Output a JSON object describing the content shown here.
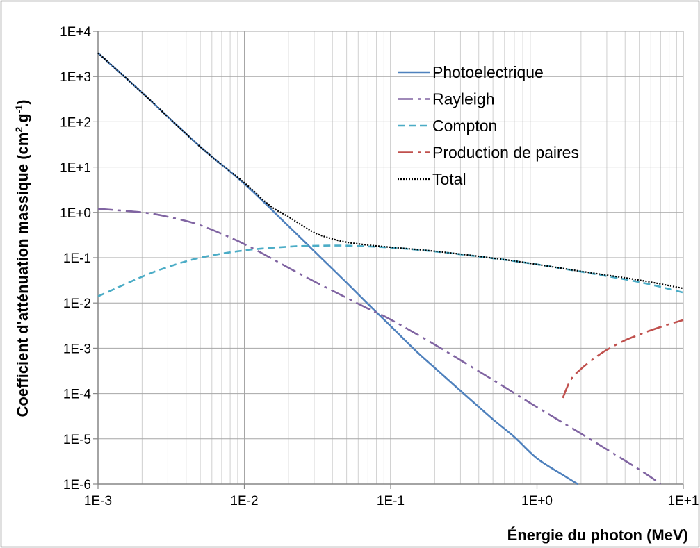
{
  "chart_data": {
    "type": "line",
    "xscale": "log",
    "yscale": "log",
    "xlim": [
      0.001,
      10
    ],
    "ylim": [
      1e-06,
      10000
    ],
    "grid": true,
    "legend_position": "top-right",
    "xlabel": "Énergie du photon (MeV)",
    "ylabel": {
      "main": "Coefficient d'atténuation massique (cm",
      "sup1": "2",
      "mid": ".g",
      "sup2": "-1",
      "end": ")"
    },
    "x_ticks": [
      {
        "value": 0.001,
        "label": "1E-3"
      },
      {
        "value": 0.01,
        "label": "1E-2"
      },
      {
        "value": 0.1,
        "label": "1E-1"
      },
      {
        "value": 1,
        "label": "1E+0"
      },
      {
        "value": 10,
        "label": "1E+1"
      }
    ],
    "y_ticks": [
      {
        "value": 10000,
        "label": "1E+4"
      },
      {
        "value": 1000,
        "label": "1E+3"
      },
      {
        "value": 100,
        "label": "1E+2"
      },
      {
        "value": 10,
        "label": "1E+1"
      },
      {
        "value": 1,
        "label": "1E+0"
      },
      {
        "value": 0.1,
        "label": "1E-1"
      },
      {
        "value": 0.01,
        "label": "1E-2"
      },
      {
        "value": 0.001,
        "label": "1E-3"
      },
      {
        "value": 0.0001,
        "label": "1E-4"
      },
      {
        "value": 1e-05,
        "label": "1E-5"
      },
      {
        "value": 1e-06,
        "label": "1E-6"
      }
    ],
    "series": [
      {
        "name": "Photoelectrique",
        "color": "#4f81bd",
        "style": "solid",
        "x": [
          0.001,
          0.002,
          0.005,
          0.01,
          0.02,
          0.03,
          0.05,
          0.07,
          0.1,
          0.15,
          0.2,
          0.3,
          0.5,
          0.7,
          1,
          1.5,
          1.9
        ],
        "y": [
          3300,
          440,
          28,
          4.3,
          0.5,
          0.14,
          0.028,
          0.0095,
          0.0031,
          0.00085,
          0.00037,
          0.000115,
          2.7e-05,
          1.1e-05,
          3.7e-06,
          1.6e-06,
          1e-06
        ]
      },
      {
        "name": "Rayleigh",
        "color": "#8064a2",
        "style": "dashdot",
        "x": [
          0.001,
          0.002,
          0.003,
          0.005,
          0.01,
          0.02,
          0.03,
          0.05,
          0.07,
          0.1,
          0.2,
          0.5,
          1,
          2,
          5,
          7
        ],
        "y": [
          1.2,
          1.0,
          0.8,
          0.52,
          0.2,
          0.06,
          0.03,
          0.013,
          0.0075,
          0.0043,
          0.0012,
          0.0002,
          5e-05,
          1.3e-05,
          2.1e-06,
          1e-06
        ]
      },
      {
        "name": "Compton",
        "color": "#4bacc6",
        "style": "dashed",
        "x": [
          0.001,
          0.002,
          0.003,
          0.005,
          0.01,
          0.02,
          0.03,
          0.05,
          0.1,
          0.2,
          0.5,
          1,
          2,
          5,
          10
        ],
        "y": [
          0.014,
          0.038,
          0.062,
          0.1,
          0.145,
          0.175,
          0.183,
          0.184,
          0.167,
          0.137,
          0.097,
          0.071,
          0.049,
          0.029,
          0.017
        ]
      },
      {
        "name": "Production de paires",
        "color": "#c0504d",
        "style": "dashdot",
        "x": [
          1.5,
          1.7,
          2,
          2.5,
          3,
          4,
          5,
          6,
          8,
          10
        ],
        "y": [
          8e-05,
          0.0002,
          0.00035,
          0.00062,
          0.00092,
          0.0015,
          0.002,
          0.0025,
          0.0034,
          0.0042
        ]
      },
      {
        "name": "Total",
        "color": "#000000",
        "style": "dotted",
        "x": [
          0.001,
          0.002,
          0.005,
          0.01,
          0.015,
          0.02,
          0.03,
          0.04,
          0.05,
          0.07,
          0.1,
          0.2,
          0.5,
          1,
          2,
          5,
          10
        ],
        "y": [
          3300,
          440,
          28,
          4.5,
          1.4,
          0.8,
          0.36,
          0.26,
          0.22,
          0.19,
          0.17,
          0.139,
          0.098,
          0.071,
          0.05,
          0.032,
          0.021
        ]
      }
    ]
  }
}
